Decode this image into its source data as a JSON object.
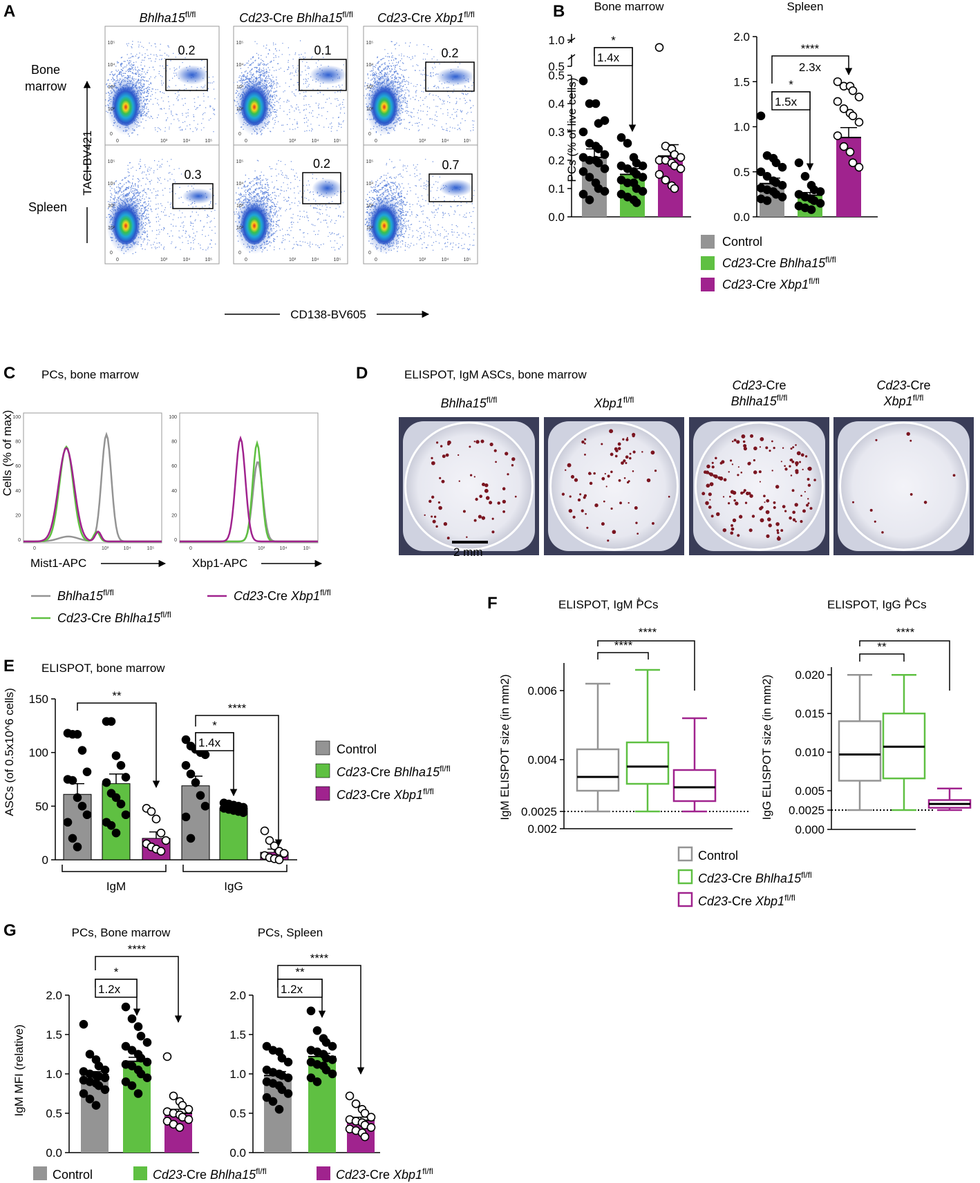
{
  "colors": {
    "control": "#949494",
    "bhlha15": "#5fc042",
    "xbp1": "#a0238e",
    "black": "#000000"
  },
  "panels": {
    "A": "A",
    "B": "B",
    "C": "C",
    "D": "D",
    "E": "E",
    "F": "F",
    "G": "G"
  },
  "flow": {
    "col_titles": [
      {
        "main": "Bhlha15",
        "sup": "fl/fl"
      },
      {
        "pre": "Cd23",
        "mid": "-Cre ",
        "main": "Bhlha15",
        "sup": "fl/fl"
      },
      {
        "pre": "Cd23",
        "mid": "-Cre ",
        "main": "Xbp1",
        "sup": "fl/fl"
      }
    ],
    "row_labels": [
      [
        "Bone",
        "marrow"
      ],
      [
        "Spleen"
      ]
    ],
    "gate_values": [
      [
        "0.2",
        "0.1",
        "0.2"
      ],
      [
        "0.3",
        "0.2",
        "0.7"
      ]
    ],
    "ylabel": "TACI-BV421",
    "xlabel": "CD138-BV605",
    "tick_labels": [
      "0",
      "10³",
      "10⁴",
      "10⁵"
    ]
  },
  "legendB": [
    "Control",
    {
      "pre": "Cd23",
      "mid": "-Cre ",
      "main": "Bhlha15",
      "sup": "fl/fl"
    },
    {
      "pre": "Cd23",
      "mid": "-Cre ",
      "main": "Xbp1",
      "sup": "fl/fl"
    }
  ],
  "histC": {
    "title": "PCs, bone marrow",
    "ylabel": "Cells (% of max)",
    "xlabels": [
      "Mist1-APC",
      "Xbp1-APC"
    ],
    "yticks": [
      "0",
      "20",
      "40",
      "60",
      "80",
      "100"
    ],
    "xticks": [
      "0",
      "10³",
      "10⁴",
      "10⁵"
    ],
    "legend": [
      {
        "main": "Bhlha15",
        "sup": "fl/fl"
      },
      {
        "pre": "Cd23",
        "mid": "-Cre ",
        "main": "Xbp1",
        "sup": "fl/fl"
      },
      {
        "pre": "Cd23",
        "mid": "-Cre ",
        "main": "Bhlha15",
        "sup": "fl/fl"
      }
    ]
  },
  "elispotD": {
    "title": "ELISPOT, IgM ASCs, bone marrow",
    "wells": [
      {
        "lines": [
          {
            "main": "Bhlha15",
            "sup": "fl/fl"
          }
        ]
      },
      {
        "lines": [
          {
            "main": "Xbp1",
            "sup": "fl/fl"
          }
        ]
      },
      {
        "lines": [
          {
            "pre": "Cd23",
            "mid": "-Cre"
          },
          {
            "main": "Bhlha15",
            "sup": "fl/fl"
          }
        ]
      },
      {
        "lines": [
          {
            "pre": "Cd23",
            "mid": "-Cre"
          },
          {
            "main": "Xbp1",
            "sup": "fl/fl"
          }
        ]
      }
    ],
    "scalebar": "2 mm"
  },
  "legendE": [
    "Control",
    {
      "pre": "Cd23",
      "mid": "-Cre ",
      "main": "Bhlha15",
      "sup": "fl/fl"
    },
    {
      "pre": "Cd23",
      "mid": "-Cre ",
      "main": "Xbp1",
      "sup": "fl/fl"
    }
  ],
  "legendF": [
    "Control",
    {
      "pre": "Cd23",
      "mid": "-Cre ",
      "main": "Bhlha15",
      "sup": "fl/fl"
    },
    {
      "pre": "Cd23",
      "mid": "-Cre ",
      "main": "Xbp1",
      "sup": "fl/fl"
    }
  ],
  "legendG": [
    "Control",
    {
      "pre": "Cd23",
      "mid": "-Cre ",
      "main": "Bhlha15",
      "sup": "fl/fl"
    },
    {
      "pre": "Cd23",
      "mid": "-Cre ",
      "main": "Xbp1",
      "sup": "fl/fl"
    }
  ],
  "chart_data": [
    {
      "id": "B_bm",
      "type": "bar",
      "title": "Bone marrow",
      "ylabel": "PCs (% of live cells)",
      "categories": [
        "Control",
        "Cd23-Cre Bhlha15 fl/fl",
        "Cd23-Cre Xbp1 fl/fl"
      ],
      "values": [
        0.21,
        0.15,
        0.215
      ],
      "sem": [
        0.03,
        0.02,
        0.04
      ],
      "axis_break": {
        "lower": [
          0,
          0.5
        ],
        "upper": [
          0.5,
          1.0
        ]
      },
      "yticks": [
        "0.0",
        "0.1",
        "0.2",
        "0.3",
        "0.4",
        "0.5",
        "0.5",
        "1.0"
      ],
      "points": [
        [
          0.48,
          0.4,
          0.4,
          0.33,
          0.34,
          0.3,
          0.26,
          0.25,
          0.24,
          0.22,
          0.21,
          0.2,
          0.2,
          0.19,
          0.17,
          0.16,
          0.14,
          0.12,
          0.1,
          0.09,
          0.08,
          0.06
        ],
        [
          0.28,
          0.26,
          0.21,
          0.19,
          0.18,
          0.18,
          0.17,
          0.16,
          0.15,
          0.14,
          0.13,
          0.12,
          0.12,
          0.1,
          0.09,
          0.08,
          0.07,
          0.06,
          0.05
        ],
        [
          0.86,
          0.25,
          0.24,
          0.22,
          0.21,
          0.2,
          0.2,
          0.19,
          0.18,
          0.17,
          0.15,
          0.13,
          0.11,
          0.1
        ]
      ],
      "sig": [
        {
          "from": 0,
          "to": 1,
          "label": "*",
          "fold": "1.4x"
        }
      ]
    },
    {
      "id": "B_sp",
      "type": "bar",
      "title": "Spleen",
      "ylim": [
        0,
        2.0
      ],
      "categories": [
        "Control",
        "Cd23-Cre Bhlha15 fl/fl",
        "Cd23-Cre Xbp1 fl/fl"
      ],
      "values": [
        0.37,
        0.24,
        0.88
      ],
      "sem": [
        0.06,
        0.03,
        0.11
      ],
      "yticks": [
        "0.0",
        "0.5",
        "1.0",
        "1.5",
        "2.0"
      ],
      "points": [
        [
          1.12,
          0.68,
          0.65,
          0.6,
          0.55,
          0.5,
          0.45,
          0.4,
          0.38,
          0.35,
          0.32,
          0.3,
          0.28,
          0.25,
          0.22,
          0.2,
          0.18
        ],
        [
          0.6,
          0.45,
          0.35,
          0.3,
          0.28,
          0.25,
          0.22,
          0.2,
          0.18,
          0.15,
          0.12,
          0.1,
          0.08
        ],
        [
          1.5,
          1.45,
          1.45,
          1.4,
          1.33,
          1.28,
          1.2,
          1.15,
          1.12,
          1.05,
          0.9,
          0.78,
          0.72,
          0.6,
          0.55
        ]
      ],
      "sig": [
        {
          "from": 0,
          "to": 1,
          "label": "*",
          "fold": "1.5x"
        },
        {
          "from": 0,
          "to": 2,
          "label": "****",
          "fold": "2.3x"
        }
      ]
    },
    {
      "id": "E",
      "type": "bar",
      "title": "ELISPOT, bone marrow",
      "ylabel": "ASCs (of 0.5x10^6 cells)",
      "ylim": [
        0,
        150
      ],
      "yticks": [
        "0",
        "50",
        "100",
        "150"
      ],
      "groups": [
        "IgM",
        "IgG"
      ],
      "categories": [
        "Control",
        "Cd23-Cre Bhlha15 fl/fl",
        "Cd23-Cre Xbp1 fl/fl"
      ],
      "values": [
        [
          61,
          71,
          20
        ],
        [
          69,
          48,
          7
        ]
      ],
      "sem": [
        [
          10,
          9,
          6
        ],
        [
          9,
          3,
          3
        ]
      ],
      "points": [
        [
          [
            118,
            117,
            117,
            102,
            82,
            75,
            74,
            58,
            50,
            42,
            35,
            20,
            12
          ],
          [
            129,
            129,
            97,
            88,
            77,
            72,
            62,
            58,
            52,
            42,
            35,
            32,
            25
          ],
          [
            48,
            45,
            38,
            25,
            18,
            15,
            12,
            10,
            8
          ]
        ],
        [
          [
            112,
            106,
            103,
            100,
            98,
            88,
            80,
            72,
            60,
            50,
            40,
            20
          ],
          [
            53,
            52,
            51,
            50,
            49,
            48,
            47,
            46,
            45,
            44
          ],
          [
            27,
            18,
            13,
            8,
            6,
            4,
            2,
            1,
            0
          ]
        ]
      ],
      "sig": [
        {
          "group": 0,
          "from": 0,
          "to": 2,
          "label": "**"
        },
        {
          "group": 1,
          "from": 0,
          "to": 1,
          "label": "*",
          "fold": "1.4x"
        },
        {
          "group": 1,
          "from": 0,
          "to": 2,
          "label": "****"
        }
      ]
    },
    {
      "id": "F_igm",
      "type": "box",
      "title": "ELISPOT, IgM+ PCs",
      "ylabel": "IgM ELISPOT size (in mm2)",
      "ylim": [
        0.002,
        0.0068
      ],
      "yticks": [
        "0.002",
        "0.0025",
        "0.004",
        "0.006"
      ],
      "dotted_line": 0.0025,
      "categories": [
        "Control",
        "Cd23-Cre Bhlha15 fl/fl",
        "Cd23-Cre Xbp1 fl/fl"
      ],
      "boxes": [
        {
          "min": 0.0025,
          "q1": 0.0031,
          "median": 0.0035,
          "q3": 0.0043,
          "max": 0.0062
        },
        {
          "min": 0.0025,
          "q1": 0.0033,
          "median": 0.0038,
          "q3": 0.0045,
          "max": 0.0066
        },
        {
          "min": 0.0025,
          "q1": 0.0028,
          "median": 0.0032,
          "q3": 0.0037,
          "max": 0.0052
        }
      ],
      "sig": [
        {
          "from": 0,
          "to": 1,
          "label": "****"
        },
        {
          "from": 0,
          "to": 2,
          "label": "****"
        }
      ]
    },
    {
      "id": "F_igg",
      "type": "box",
      "title": "ELISPOT, IgG+ PCs",
      "ylabel": "IgG ELISPOT size (in mm2)",
      "ylim": [
        0,
        0.021
      ],
      "yticks": [
        "0.000",
        "0.0025",
        "0.005",
        "0.010",
        "0.015",
        "0.020"
      ],
      "dotted_line": 0.0025,
      "categories": [
        "Control",
        "Cd23-Cre Bhlha15 fl/fl",
        "Cd23-Cre Xbp1 fl/fl"
      ],
      "boxes": [
        {
          "min": 0.0025,
          "q1": 0.0063,
          "median": 0.0097,
          "q3": 0.014,
          "max": 0.02
        },
        {
          "min": 0.0025,
          "q1": 0.0066,
          "median": 0.0107,
          "q3": 0.015,
          "max": 0.02
        },
        {
          "min": 0.0025,
          "q1": 0.0028,
          "median": 0.0033,
          "q3": 0.0038,
          "max": 0.0053
        }
      ],
      "sig": [
        {
          "from": 0,
          "to": 1,
          "label": "**"
        },
        {
          "from": 0,
          "to": 2,
          "label": "****"
        }
      ]
    },
    {
      "id": "G_bm",
      "type": "bar",
      "title": "PCs, Bone marrow",
      "ylabel": "IgM MFI (relative)",
      "ylim": [
        0,
        2.0
      ],
      "yticks": [
        "0.0",
        "0.5",
        "1.0",
        "1.5",
        "2.0"
      ],
      "categories": [
        "Control",
        "Cd23-Cre Bhlha15 fl/fl",
        "Cd23-Cre Xbp1 fl/fl"
      ],
      "values": [
        0.99,
        1.16,
        0.5
      ],
      "sem": [
        0.04,
        0.05,
        0.05
      ],
      "points": [
        [
          1.63,
          1.25,
          1.18,
          1.1,
          1.05,
          1.03,
          1.0,
          0.98,
          0.97,
          0.95,
          0.92,
          0.9,
          0.88,
          0.85,
          0.8,
          0.75,
          0.68,
          0.6
        ],
        [
          1.85,
          1.7,
          1.6,
          1.48,
          1.4,
          1.35,
          1.3,
          1.25,
          1.2,
          1.15,
          1.12,
          1.1,
          1.05,
          1.0,
          0.95,
          0.9,
          0.85,
          0.75
        ],
        [
          1.22,
          0.72,
          0.65,
          0.6,
          0.55,
          0.52,
          0.5,
          0.48,
          0.45,
          0.42,
          0.4,
          0.36,
          0.32
        ]
      ],
      "sig": [
        {
          "from": 0,
          "to": 1,
          "label": "*",
          "fold": "1.2x"
        },
        {
          "from": 0,
          "to": 2,
          "label": "****"
        }
      ]
    },
    {
      "id": "G_sp",
      "type": "bar",
      "title": "PCs, Spleen",
      "ylim": [
        0,
        2.0
      ],
      "yticks": [
        "0.0",
        "0.5",
        "1.0",
        "1.5",
        "2.0"
      ],
      "categories": [
        "Control",
        "Cd23-Cre Bhlha15 fl/fl",
        "Cd23-Cre Xbp1 fl/fl"
      ],
      "values": [
        0.98,
        1.22,
        0.41
      ],
      "sem": [
        0.05,
        0.04,
        0.04
      ],
      "points": [
        [
          1.35,
          1.3,
          1.28,
          1.2,
          1.15,
          1.05,
          1.02,
          1.0,
          0.98,
          0.95,
          0.9,
          0.88,
          0.85,
          0.8,
          0.75,
          0.7,
          0.65,
          0.55
        ],
        [
          1.8,
          1.55,
          1.45,
          1.4,
          1.35,
          1.3,
          1.28,
          1.25,
          1.2,
          1.18,
          1.15,
          1.12,
          1.1,
          1.05,
          1.0,
          0.95,
          0.9
        ],
        [
          0.72,
          0.62,
          0.55,
          0.5,
          0.45,
          0.42,
          0.4,
          0.38,
          0.35,
          0.32,
          0.3,
          0.28,
          0.25,
          0.2
        ]
      ],
      "sig": [
        {
          "from": 0,
          "to": 1,
          "label": "**",
          "fold": "1.2x"
        },
        {
          "from": 0,
          "to": 2,
          "label": "****"
        }
      ]
    }
  ]
}
